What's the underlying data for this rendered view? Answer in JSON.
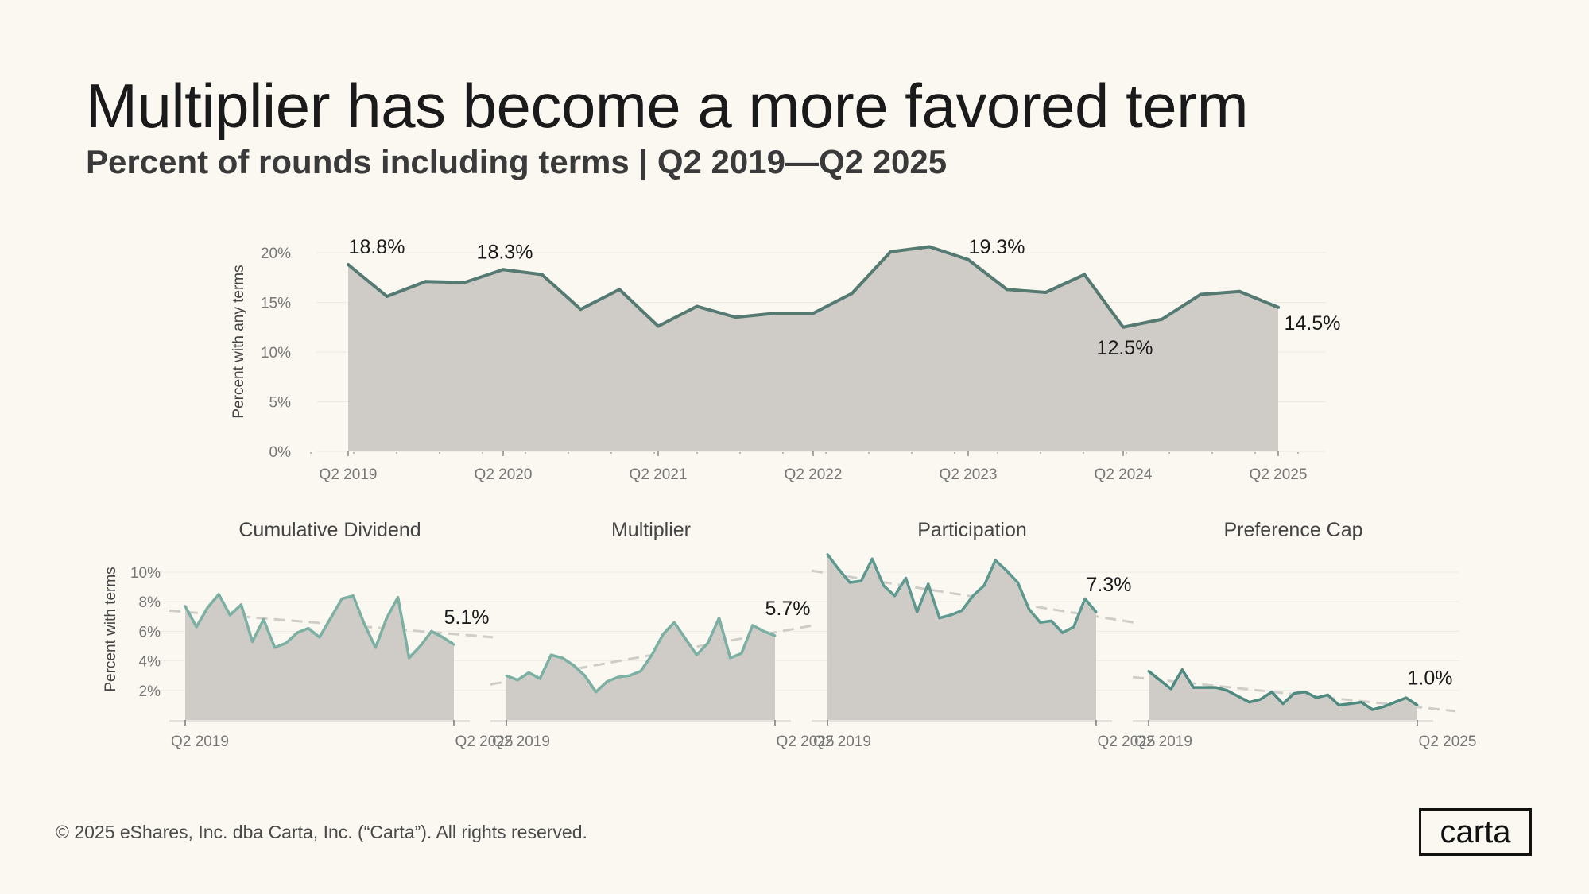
{
  "title": "Multiplier has become a more favored term",
  "subtitle": "Percent of rounds including terms |  Q2 2019—Q2 2025",
  "footer": {
    "copyright": "© 2025 eShares, Inc. dba Carta, Inc. (“Carta”). All rights reserved.",
    "logo": "carta"
  },
  "colors": {
    "main_line": "#547a72",
    "small_line": "#7bb0a3",
    "small_line_dark": "#4f8a80",
    "area_fill": "#cfccc7",
    "trend": "#cfcdc8",
    "background": "#fbf8f2"
  },
  "chart_data": [
    {
      "type": "area",
      "ylabel": "Percent with any terms",
      "xlabel": "",
      "ylim": [
        0,
        20
      ],
      "yticks": [
        "0%",
        "5%",
        "10%",
        "15%",
        "20%"
      ],
      "x_tick_labels": [
        "Q2 2019",
        "Q2 2020",
        "Q2 2021",
        "Q2 2022",
        "Q2 2023",
        "Q2 2024",
        "Q2 2025"
      ],
      "x": [
        "Q2 2019",
        "Q3 2019",
        "Q4 2019",
        "Q1 2020",
        "Q2 2020",
        "Q3 2020",
        "Q4 2020",
        "Q1 2021",
        "Q2 2021",
        "Q3 2021",
        "Q4 2021",
        "Q1 2022",
        "Q2 2022",
        "Q3 2022",
        "Q4 2022",
        "Q1 2023",
        "Q2 2023",
        "Q3 2023",
        "Q4 2023",
        "Q1 2024",
        "Q2 2024",
        "Q3 2024",
        "Q4 2024",
        "Q1 2025",
        "Q2 2025"
      ],
      "values": [
        18.8,
        15.6,
        17.1,
        17.0,
        18.3,
        17.8,
        14.3,
        16.3,
        12.6,
        14.6,
        13.5,
        13.9,
        13.9,
        15.9,
        20.1,
        20.6,
        19.3,
        16.3,
        16.0,
        17.8,
        12.5,
        13.3,
        15.8,
        16.1,
        14.5
      ],
      "annotations": [
        {
          "x": "Q2 2019",
          "label": "18.8%"
        },
        {
          "x": "Q2 2020",
          "label": "18.3%"
        },
        {
          "x": "Q2 2023",
          "label": "19.3%"
        },
        {
          "x": "Q2 2024",
          "label": "12.5%"
        },
        {
          "x": "Q2 2025",
          "label": "14.5%"
        }
      ],
      "grid": true
    },
    {
      "type": "area",
      "title": "Cumulative Dividend",
      "ylabel": "Percent with terms",
      "ylim": [
        0,
        11
      ],
      "yticks": [
        "2%",
        "4%",
        "6%",
        "8%",
        "10%"
      ],
      "x_tick_labels": [
        "Q2 2019",
        "Q2 2025"
      ],
      "values": [
        7.7,
        6.3,
        7.6,
        8.5,
        7.1,
        7.8,
        5.3,
        6.8,
        4.9,
        5.2,
        5.9,
        6.2,
        5.6,
        6.9,
        8.2,
        8.4,
        6.5,
        4.9,
        6.9,
        8.3,
        4.2,
        5.0,
        6.0,
        5.6,
        5.1
      ],
      "trend": [
        7.4,
        5.6
      ],
      "annotations": [
        {
          "x": "Q2 2025",
          "label": "5.1%"
        }
      ]
    },
    {
      "type": "area",
      "title": "Multiplier",
      "ylim": [
        0,
        11
      ],
      "x_tick_labels": [
        "Q2 2019",
        "Q2 2025"
      ],
      "values": [
        3.0,
        2.7,
        3.2,
        2.8,
        4.4,
        4.2,
        3.7,
        3.0,
        1.9,
        2.6,
        2.9,
        3.0,
        3.3,
        4.4,
        5.8,
        6.6,
        5.5,
        4.4,
        5.2,
        6.9,
        4.2,
        4.5,
        6.4,
        6.0,
        5.7
      ],
      "trend": [
        2.4,
        6.4
      ],
      "annotations": [
        {
          "x": "Q2 2025",
          "label": "5.7%"
        }
      ]
    },
    {
      "type": "area",
      "title": "Participation",
      "ylim": [
        0,
        11
      ],
      "x_tick_labels": [
        "Q2 2019",
        "Q2 2025"
      ],
      "values": [
        11.2,
        10.2,
        9.3,
        9.4,
        10.9,
        9.1,
        8.4,
        9.6,
        7.3,
        9.2,
        6.9,
        7.1,
        7.4,
        8.4,
        9.1,
        10.8,
        10.1,
        9.3,
        7.5,
        6.6,
        6.7,
        5.9,
        6.3,
        8.2,
        7.3
      ],
      "trend": [
        10.1,
        6.6
      ],
      "annotations": [
        {
          "x": "Q2 2025",
          "label": "7.3%"
        }
      ]
    },
    {
      "type": "area",
      "title": "Preference Cap",
      "ylim": [
        0,
        11
      ],
      "x_tick_labels": [
        "Q2 2019",
        "Q2 2025"
      ],
      "values": [
        3.3,
        2.7,
        2.1,
        3.4,
        2.2,
        2.2,
        2.2,
        2.0,
        1.6,
        1.2,
        1.4,
        1.9,
        1.1,
        1.8,
        1.9,
        1.5,
        1.7,
        1.0,
        1.1,
        1.2,
        0.7,
        0.9,
        1.2,
        1.5,
        1.0
      ],
      "trend": [
        2.9,
        0.6
      ],
      "annotations": [
        {
          "x": "Q2 2025",
          "label": "1.0%"
        }
      ]
    }
  ]
}
